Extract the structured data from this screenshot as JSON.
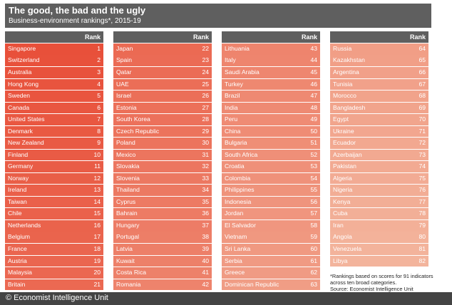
{
  "header": {
    "title": "The good, the bad and the ugly",
    "subtitle": "Business-environment rankings*, 2015-19"
  },
  "chart_data": {
    "type": "table",
    "title": "The good, the bad and the ugly",
    "subtitle": "Business-environment rankings*, 2015-19",
    "columns": [
      "",
      "Rank"
    ],
    "rows": [
      [
        "Singapore",
        1
      ],
      [
        "Switzerland",
        2
      ],
      [
        "Australia",
        3
      ],
      [
        "Hong Kong",
        4
      ],
      [
        "Sweden",
        5
      ],
      [
        "Canada",
        6
      ],
      [
        "United States",
        7
      ],
      [
        "Denmark",
        8
      ],
      [
        "New Zealand",
        9
      ],
      [
        "Finland",
        10
      ],
      [
        "Germany",
        11
      ],
      [
        "Norway",
        12
      ],
      [
        "Ireland",
        13
      ],
      [
        "Taiwan",
        14
      ],
      [
        "Chile",
        15
      ],
      [
        "Netherlands",
        16
      ],
      [
        "Belgium",
        17
      ],
      [
        "France",
        18
      ],
      [
        "Austria",
        19
      ],
      [
        "Malaysia",
        20
      ],
      [
        "Britain",
        21
      ],
      [
        "Japan",
        22
      ],
      [
        "Spain",
        23
      ],
      [
        "Qatar",
        24
      ],
      [
        "UAE",
        25
      ],
      [
        "Israel",
        26
      ],
      [
        "Estonia",
        27
      ],
      [
        "South Korea",
        28
      ],
      [
        "Czech Republic",
        29
      ],
      [
        "Poland",
        30
      ],
      [
        "Mexico",
        31
      ],
      [
        "Slovakia",
        32
      ],
      [
        "Slovenia",
        33
      ],
      [
        "Thailand",
        34
      ],
      [
        "Cyprus",
        35
      ],
      [
        "Bahrain",
        36
      ],
      [
        "Hungary",
        37
      ],
      [
        "Portugal",
        38
      ],
      [
        "Latvia",
        39
      ],
      [
        "Kuwait",
        40
      ],
      [
        "Costa Rica",
        41
      ],
      [
        "Romania",
        42
      ],
      [
        "Lithuania",
        43
      ],
      [
        "Italy",
        44
      ],
      [
        "Saudi Arabia",
        45
      ],
      [
        "Turkey",
        46
      ],
      [
        "Brazil",
        47
      ],
      [
        "India",
        48
      ],
      [
        "Peru",
        49
      ],
      [
        "China",
        50
      ],
      [
        "Bulgaria",
        51
      ],
      [
        "South Africa",
        52
      ],
      [
        "Croatia",
        53
      ],
      [
        "Colombia",
        54
      ],
      [
        "Philippines",
        55
      ],
      [
        "Indonesia",
        56
      ],
      [
        "Jordan",
        57
      ],
      [
        "El Salvador",
        58
      ],
      [
        "Vietnam",
        59
      ],
      [
        "Sri Lanka",
        60
      ],
      [
        "Serbia",
        61
      ],
      [
        "Greece",
        62
      ],
      [
        "Dominican Republic",
        63
      ],
      [
        "Russia",
        64
      ],
      [
        "Kazakhstan",
        65
      ],
      [
        "Argentina",
        66
      ],
      [
        "Tunisia",
        67
      ],
      [
        "Morocco",
        68
      ],
      [
        "Bangladesh",
        69
      ],
      [
        "Egypt",
        70
      ],
      [
        "Ukraine",
        71
      ],
      [
        "Ecuador",
        72
      ],
      [
        "Azerbaijan",
        73
      ],
      [
        "Pakistan",
        74
      ],
      [
        "Algeria",
        75
      ],
      [
        "Nigeria",
        76
      ],
      [
        "Kenya",
        77
      ],
      [
        "Cuba",
        78
      ],
      [
        "Iran",
        79
      ],
      [
        "Angola",
        80
      ],
      [
        "Venezuela",
        81
      ],
      [
        "Libya",
        82
      ]
    ],
    "color_gradient": [
      "#e8503a",
      "#f3b49c"
    ]
  },
  "column_groups": [
    {
      "header": "Rank",
      "start": 0,
      "count": 21
    },
    {
      "header": "Rank",
      "start": 21,
      "count": 21
    },
    {
      "header": "Rank",
      "start": 42,
      "count": 21
    },
    {
      "header": "Rank",
      "start": 63,
      "count": 19
    }
  ],
  "footnote": {
    "line1": "*Rankings based on scores for 91 indicators across ten broad categories.",
    "line2": "Source: Economist Intelligence Unit"
  },
  "footer": {
    "credit": "© Economist Intelligence Unit"
  }
}
